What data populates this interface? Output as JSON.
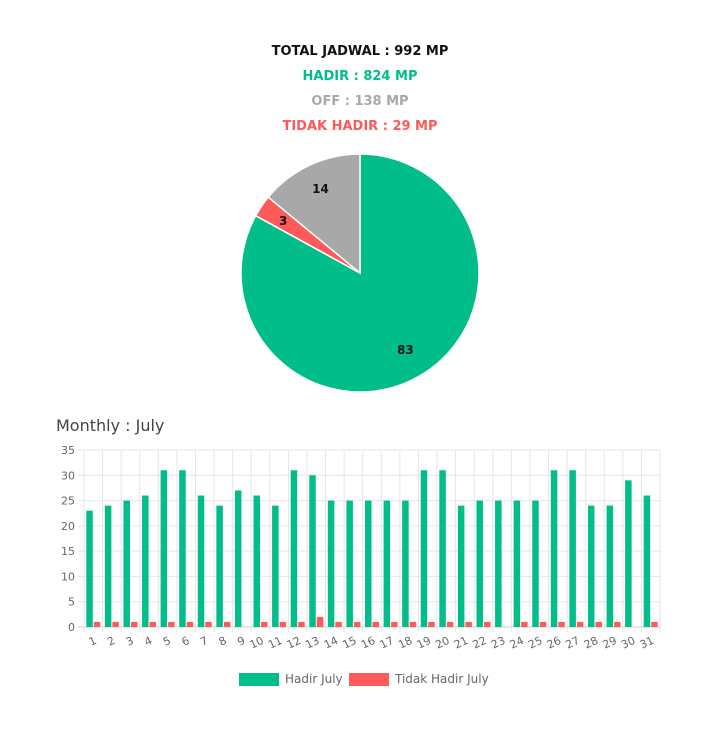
{
  "summary": {
    "total": "TOTAL JADWAL : 992 MP",
    "hadir": "HADIR : 824 MP",
    "off": "OFF : 138 MP",
    "tidak_hadir": "TIDAK HADIR : 29 MP"
  },
  "colors": {
    "hadir": "#00bd8a",
    "off": "#a8a8a8",
    "tidak_hadir": "#ff5a5a",
    "grid": "#e6e6e6",
    "tick": "#666666"
  },
  "chart_data": [
    {
      "type": "pie",
      "categories": [
        "Hadir",
        "Tidak Hadir",
        "Off"
      ],
      "values": [
        83,
        3,
        14
      ],
      "title": "",
      "legend": "none"
    },
    {
      "type": "bar",
      "title": "Monthly : July",
      "xlabel": "",
      "ylabel": "",
      "ylim": [
        0,
        35
      ],
      "yticks": [
        0,
        5,
        10,
        15,
        20,
        25,
        30,
        35
      ],
      "grid": true,
      "legend": "bottom",
      "categories": [
        "1",
        "2",
        "3",
        "4",
        "5",
        "6",
        "7",
        "8",
        "9",
        "10",
        "11",
        "12",
        "13",
        "14",
        "15",
        "16",
        "17",
        "18",
        "19",
        "20",
        "21",
        "22",
        "23",
        "24",
        "25",
        "26",
        "27",
        "28",
        "29",
        "30",
        "31"
      ],
      "series": [
        {
          "name": "Hadir July",
          "values": [
            23,
            24,
            25,
            26,
            31,
            31,
            26,
            24,
            27,
            26,
            24,
            31,
            30,
            25,
            25,
            25,
            25,
            25,
            31,
            31,
            24,
            25,
            25,
            25,
            25,
            31,
            31,
            24,
            24,
            29,
            26
          ]
        },
        {
          "name": "Tidak Hadir July",
          "values": [
            1,
            1,
            1,
            1,
            1,
            1,
            1,
            1,
            0,
            1,
            1,
            1,
            2,
            1,
            1,
            1,
            1,
            1,
            1,
            1,
            1,
            1,
            0,
            1,
            1,
            1,
            1,
            1,
            1,
            0,
            1
          ]
        }
      ]
    }
  ]
}
